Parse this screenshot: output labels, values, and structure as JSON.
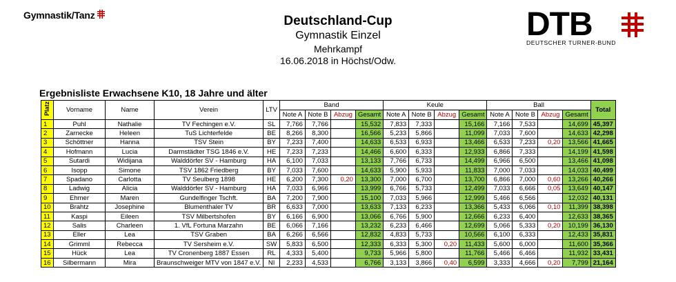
{
  "logo_left": {
    "text": "Gymnastik/Tanz",
    "icon": "dtb-cross-icon"
  },
  "header": {
    "title": "Deutschland-Cup",
    "subtitle": "Gymnastik Einzel",
    "category": "Mehrkampf",
    "date_place": "16.06.2018 in Höchst/Odw."
  },
  "logo_right": {
    "text": "DTB",
    "sub": "DEUTSCHER TURNER-BUND",
    "icon": "dtb-cross-icon"
  },
  "list_title": "Ergebnisliste Erwachsene K10, 18 Jahre und älter",
  "columns": {
    "platz": "Platz",
    "vorname": "Vorname",
    "name": "Name",
    "verein": "Verein",
    "ltv": "LTV",
    "band": "Band",
    "keule": "Keule",
    "ball": "Ball",
    "note_a": "Note A",
    "note_b": "Note B",
    "abzug": "Abzug",
    "gesamt": "Gesamt",
    "total": "Total"
  },
  "colors": {
    "yellow": "#ffff00",
    "green": "#92d050",
    "red": "#c00000"
  },
  "rows": [
    {
      "platz": "1",
      "vorname": "Puhl",
      "name": "Nathalie",
      "verein": "TV Fechingen e.V.",
      "ltv": "SL",
      "band": [
        "7,766",
        "7,766",
        "",
        "15,532"
      ],
      "keule": [
        "7,833",
        "7,333",
        "",
        "15,166"
      ],
      "ball": [
        "7,166",
        "7,533",
        "",
        "14,699"
      ],
      "total": "45,397"
    },
    {
      "platz": "2",
      "vorname": "Zarnecke",
      "name": "Heleen",
      "verein": "TuS Lichterfelde",
      "ltv": "BE",
      "band": [
        "8,266",
        "8,300",
        "",
        "16,566"
      ],
      "keule": [
        "5,233",
        "5,866",
        "",
        "11,099"
      ],
      "ball": [
        "7,033",
        "7,600",
        "",
        "14,633"
      ],
      "total": "42,298"
    },
    {
      "platz": "3",
      "vorname": "Schöttner",
      "name": "Hanna",
      "verein": "TSV Stein",
      "ltv": "BY",
      "band": [
        "7,233",
        "7,400",
        "",
        "14,633"
      ],
      "keule": [
        "6,533",
        "6,933",
        "",
        "13,466"
      ],
      "ball": [
        "6,533",
        "7,233",
        "0,20",
        "13,566"
      ],
      "total": "41,665"
    },
    {
      "platz": "4",
      "vorname": "Hofmann",
      "name": "Lucia",
      "verein": "Darmstädter TSG 1846 e.V.",
      "ltv": "HE",
      "band": [
        "7,233",
        "7,233",
        "",
        "14,466"
      ],
      "keule": [
        "6,600",
        "6,333",
        "",
        "12,933"
      ],
      "ball": [
        "6,866",
        "7,333",
        "",
        "14,199"
      ],
      "total": "41,598"
    },
    {
      "platz": "5",
      "vorname": "Sutardi",
      "name": "Widijana",
      "verein": "Walddörfer SV - Hamburg",
      "ltv": "HA",
      "band": [
        "6,100",
        "7,033",
        "",
        "13,133"
      ],
      "keule": [
        "7,766",
        "6,733",
        "",
        "14,499"
      ],
      "ball": [
        "6,966",
        "6,500",
        "",
        "13,466"
      ],
      "total": "41,098"
    },
    {
      "platz": "6",
      "vorname": "Isopp",
      "name": "Simone",
      "verein": "TSV 1862 Friedberg",
      "ltv": "BY",
      "band": [
        "7,033",
        "7,600",
        "",
        "14,633"
      ],
      "keule": [
        "5,900",
        "5,933",
        "",
        "11,833"
      ],
      "ball": [
        "7,000",
        "7,033",
        "",
        "14,033"
      ],
      "total": "40,499"
    },
    {
      "platz": "7",
      "vorname": "Spadano",
      "name": "Carlotta",
      "verein": "TV Seulberg 1898",
      "ltv": "HE",
      "band": [
        "6,200",
        "7,300",
        "0,20",
        "13,300"
      ],
      "keule": [
        "7,000",
        "6,700",
        "",
        "13,700"
      ],
      "ball": [
        "6,866",
        "7,000",
        "0,60",
        "13,266"
      ],
      "total": "40,266"
    },
    {
      "platz": "8",
      "vorname": "Ladwig",
      "name": "Alicia",
      "verein": "Walddörfer SV - Hamburg",
      "ltv": "HA",
      "band": [
        "7,033",
        "6,966",
        "",
        "13,999"
      ],
      "keule": [
        "6,766",
        "5,733",
        "",
        "12,499"
      ],
      "ball": [
        "7,033",
        "6,666",
        "0,05",
        "13,649"
      ],
      "total": "40,147"
    },
    {
      "platz": "9",
      "vorname": "Ehmer",
      "name": "Maren",
      "verein": "Gundelfinger Tschft.",
      "ltv": "BA",
      "band": [
        "7,200",
        "7,900",
        "",
        "15,100"
      ],
      "keule": [
        "7,033",
        "5,966",
        "",
        "12,999"
      ],
      "ball": [
        "5,466",
        "6,566",
        "",
        "12,032"
      ],
      "total": "40,131"
    },
    {
      "platz": "10",
      "vorname": "Brahtz",
      "name": "Josephine",
      "verein": "Blumenthaler TV",
      "ltv": "BR",
      "band": [
        "6,633",
        "7,000",
        "",
        "13,633"
      ],
      "keule": [
        "7,133",
        "6,233",
        "",
        "13,366"
      ],
      "ball": [
        "5,433",
        "6,066",
        "0,10",
        "11,399"
      ],
      "total": "38,398"
    },
    {
      "platz": "11",
      "vorname": "Kaspi",
      "name": "Eileen",
      "verein": "TSV Milbertshofen",
      "ltv": "BY",
      "band": [
        "6,166",
        "6,900",
        "",
        "13,066"
      ],
      "keule": [
        "6,766",
        "5,900",
        "",
        "12,666"
      ],
      "ball": [
        "6,233",
        "6,400",
        "",
        "12,633"
      ],
      "total": "38,365"
    },
    {
      "platz": "12",
      "vorname": "Salis",
      "name": "Charleen",
      "verein": "1. VfL Fortuna Marzahn",
      "ltv": "BE",
      "band": [
        "6,066",
        "7,166",
        "",
        "13,232"
      ],
      "keule": [
        "6,233",
        "6,466",
        "",
        "12,699"
      ],
      "ball": [
        "5,066",
        "5,333",
        "0,20",
        "10,199"
      ],
      "total": "36,130"
    },
    {
      "platz": "13",
      "vorname": "Eller",
      "name": "Lea",
      "verein": "TSV Graben",
      "ltv": "BA",
      "band": [
        "6,266",
        "6,566",
        "",
        "12,832"
      ],
      "keule": [
        "4,833",
        "5,733",
        "",
        "10,566"
      ],
      "ball": [
        "6,100",
        "6,333",
        "",
        "12,433"
      ],
      "total": "35,831"
    },
    {
      "platz": "14",
      "vorname": "Grimml",
      "name": "Rebecca",
      "verein": "TV Sersheim e.V.",
      "ltv": "SW",
      "band": [
        "5,833",
        "6,500",
        "",
        "12,333"
      ],
      "keule": [
        "6,333",
        "5,300",
        "0,20",
        "11,433"
      ],
      "ball": [
        "5,600",
        "6,000",
        "",
        "11,600"
      ],
      "total": "35,366"
    },
    {
      "platz": "15",
      "vorname": "Hück",
      "name": "Lea",
      "verein": "TV Cronenberg 1887 Essen",
      "ltv": "RL",
      "band": [
        "4,333",
        "5,400",
        "",
        "9,733"
      ],
      "keule": [
        "5,966",
        "5,800",
        "",
        "11,766"
      ],
      "ball": [
        "5,466",
        "6,466",
        "",
        "11,932"
      ],
      "total": "33,431"
    },
    {
      "platz": "16",
      "vorname": "Silbermann",
      "name": "Mira",
      "verein": "Braunschweiger MTV von 1847 e.V.",
      "ltv": "NI",
      "band": [
        "2,233",
        "4,533",
        "",
        "6,766"
      ],
      "keule": [
        "3,133",
        "3,866",
        "0,40",
        "6,599"
      ],
      "ball": [
        "3,333",
        "4,666",
        "0,20",
        "7,799"
      ],
      "total": "21,164"
    }
  ]
}
